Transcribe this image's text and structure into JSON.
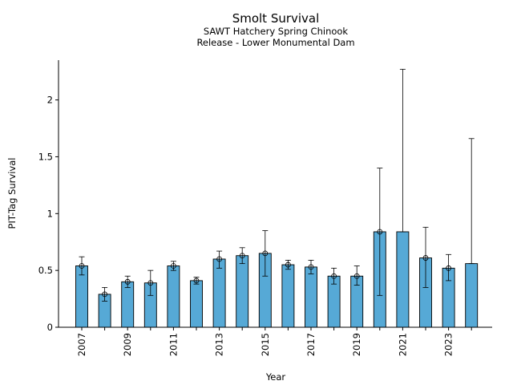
{
  "chart_data": {
    "type": "bar",
    "title": "Smolt Survival",
    "subtitle_lines": [
      "SAWT Hatchery Spring Chinook",
      "Release - Lower Monumental Dam"
    ],
    "xlabel": "Year",
    "ylabel": "PIT-Tag Survival",
    "ylim": [
      0,
      2.35
    ],
    "yticks": [
      0,
      0.5,
      1,
      1.5,
      2
    ],
    "ytick_labels": [
      "0",
      "0.5",
      "1",
      "1.5",
      "2"
    ],
    "xtick_labels": [
      "2007",
      "2009",
      "2011",
      "2013",
      "2015",
      "2017",
      "2019",
      "2021",
      "2023"
    ],
    "bar_color": "#56a9d6",
    "categories": [
      2007,
      2008,
      2009,
      2010,
      2011,
      2012,
      2013,
      2014,
      2015,
      2016,
      2017,
      2018,
      2019,
      2020,
      2021,
      2022,
      2023,
      2024
    ],
    "values": [
      0.54,
      0.29,
      0.4,
      0.39,
      0.54,
      0.41,
      0.6,
      0.63,
      0.65,
      0.55,
      0.53,
      0.45,
      0.45,
      0.84,
      0.84,
      0.61,
      0.52,
      0.56
    ],
    "error_low": [
      0.46,
      0.23,
      0.35,
      0.28,
      0.5,
      0.38,
      0.52,
      0.56,
      0.45,
      0.51,
      0.47,
      0.38,
      0.37,
      0.28,
      0.84,
      0.35,
      0.41,
      0.56
    ],
    "error_high": [
      0.62,
      0.35,
      0.45,
      0.5,
      0.58,
      0.44,
      0.67,
      0.7,
      0.85,
      0.59,
      0.59,
      0.52,
      0.54,
      1.4,
      2.27,
      0.88,
      0.64,
      1.66
    ],
    "show_marker": [
      true,
      true,
      true,
      true,
      true,
      true,
      true,
      true,
      true,
      true,
      true,
      true,
      true,
      true,
      false,
      true,
      true,
      false
    ],
    "grid": false,
    "legend": "none"
  }
}
